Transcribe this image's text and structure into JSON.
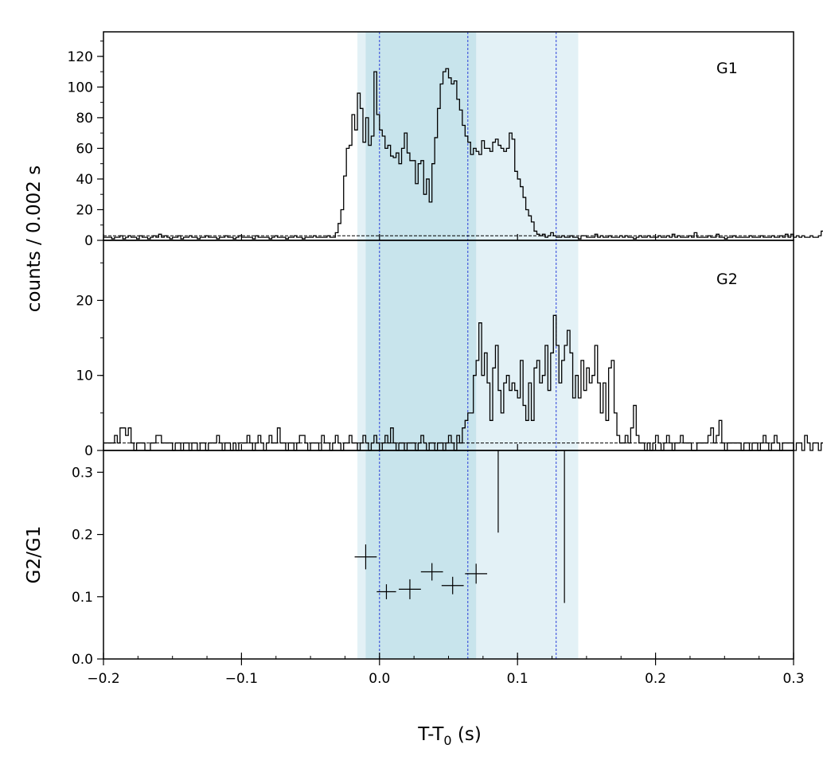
{
  "chart_data": [
    {
      "type": "line",
      "panel_label": "G1",
      "ylabel": "",
      "xlim": [
        -0.2,
        0.3
      ],
      "ylim": [
        0,
        136
      ],
      "yticks": [
        "0",
        "20",
        "40",
        "60",
        "80",
        "100",
        "120"
      ],
      "background_level": 3,
      "bin_width": 0.002,
      "series": [
        {
          "x_start": -0.2,
          "values": [
            2,
            2,
            2,
            1,
            2,
            2,
            3,
            1,
            2,
            3,
            2,
            2,
            1,
            3,
            2,
            2,
            1,
            2,
            3,
            2,
            4,
            2,
            3,
            2,
            1,
            2,
            2,
            3,
            1,
            2,
            2,
            3,
            2,
            2,
            1,
            2,
            2,
            3,
            2,
            2,
            2,
            1,
            2,
            2,
            3,
            2,
            2,
            1,
            2,
            3,
            2,
            2,
            2,
            2,
            1,
            3,
            2,
            2,
            2,
            2,
            1,
            2,
            3,
            2,
            2,
            2,
            1,
            2,
            2,
            3,
            2,
            2,
            1,
            2,
            2,
            2,
            3,
            2,
            2,
            2,
            2,
            3,
            2,
            2,
            5,
            11,
            20,
            42,
            60,
            62,
            82,
            72,
            96,
            86,
            64,
            80,
            62,
            68,
            110,
            82,
            72,
            68,
            60,
            62,
            55,
            54,
            57,
            50,
            60,
            70,
            57,
            52,
            52,
            37,
            50,
            52,
            30,
            40,
            25,
            50,
            67,
            86,
            102,
            110,
            112,
            106,
            102,
            104,
            92,
            85,
            75,
            68,
            64,
            56,
            60,
            58,
            56,
            65,
            60,
            60,
            58,
            64,
            66,
            62,
            60,
            58,
            60,
            70,
            66,
            45,
            40,
            35,
            28,
            20,
            16,
            12,
            6,
            4,
            3,
            4,
            2,
            3,
            5,
            3,
            2,
            2,
            3,
            2,
            2,
            3,
            2,
            2,
            1,
            3,
            3,
            2,
            2,
            2,
            4,
            2,
            3,
            2,
            2,
            3,
            2,
            2,
            2,
            3,
            2,
            3,
            2,
            2,
            1,
            2,
            3,
            2,
            2,
            3,
            2,
            2,
            2,
            3,
            2,
            2,
            3,
            2,
            4,
            2,
            3,
            2,
            2,
            2,
            3,
            2,
            5,
            2,
            2,
            2,
            2,
            3,
            2,
            2,
            4,
            2,
            2,
            1,
            2,
            2,
            3,
            2,
            2,
            2,
            2,
            2,
            3,
            2,
            2,
            2,
            3,
            2,
            2,
            2,
            3,
            2,
            2,
            3,
            2,
            4,
            2,
            4,
            2,
            3,
            2,
            3,
            2,
            2,
            3,
            2,
            2,
            3,
            6
          ]
        }
      ]
    },
    {
      "type": "line",
      "panel_label": "G2",
      "ylabel": "",
      "xlim": [
        -0.2,
        0.3
      ],
      "ylim": [
        0,
        28
      ],
      "yticks": [
        "0",
        "10",
        "20"
      ],
      "background_level": 1,
      "bin_width": 0.002,
      "series": [
        {
          "x_start": -0.2,
          "values": [
            1,
            1,
            1,
            1,
            2,
            1,
            3,
            3,
            2,
            3,
            1,
            0,
            1,
            1,
            1,
            0,
            0,
            1,
            1,
            2,
            2,
            1,
            1,
            1,
            1,
            0,
            1,
            1,
            0,
            1,
            1,
            0,
            1,
            1,
            0,
            1,
            1,
            0,
            1,
            1,
            1,
            2,
            1,
            0,
            1,
            1,
            0,
            1,
            0,
            1,
            1,
            1,
            2,
            1,
            0,
            1,
            2,
            1,
            0,
            1,
            2,
            1,
            1,
            3,
            1,
            1,
            0,
            1,
            1,
            0,
            1,
            2,
            2,
            1,
            0,
            1,
            1,
            1,
            0,
            2,
            1,
            1,
            0,
            1,
            2,
            1,
            0,
            1,
            1,
            2,
            1,
            1,
            0,
            1,
            2,
            1,
            0,
            1,
            2,
            1,
            0,
            1,
            2,
            1,
            3,
            1,
            0,
            1,
            1,
            0,
            1,
            1,
            1,
            0,
            1,
            2,
            1,
            0,
            1,
            1,
            0,
            1,
            1,
            0,
            1,
            2,
            1,
            0,
            2,
            1,
            3,
            4,
            5,
            5,
            10,
            12,
            17,
            10,
            13,
            9,
            4,
            11,
            14,
            8,
            5,
            9,
            10,
            8,
            9,
            8,
            7,
            12,
            6,
            4,
            9,
            4,
            11,
            12,
            9,
            10,
            14,
            8,
            13,
            18,
            14,
            9,
            12,
            14,
            16,
            13,
            7,
            10,
            7,
            12,
            8,
            11,
            9,
            10,
            14,
            9,
            5,
            9,
            4,
            11,
            12,
            5,
            2,
            1,
            1,
            2,
            1,
            3,
            6,
            2,
            1,
            1,
            0,
            1,
            0,
            1,
            2,
            1,
            0,
            1,
            2,
            1,
            0,
            1,
            1,
            2,
            1,
            1,
            1,
            0,
            0,
            1,
            1,
            1,
            1,
            2,
            3,
            1,
            2,
            4,
            1,
            0,
            1,
            1,
            1,
            1,
            1,
            0,
            1,
            1,
            0,
            1,
            1,
            0,
            1,
            2,
            1,
            0,
            1,
            2,
            1,
            0,
            1,
            1,
            1,
            1,
            0,
            1,
            1,
            0,
            2,
            1,
            0,
            1,
            1,
            0,
            1,
            2,
            1,
            1,
            0,
            1,
            1,
            1,
            0,
            1,
            2,
            1,
            1,
            0,
            1,
            1,
            1,
            2,
            1,
            1,
            1,
            0,
            1,
            1,
            2,
            1,
            1,
            1
          ]
        }
      ]
    },
    {
      "type": "scatter",
      "panel_label": "",
      "ylabel": "G2/G1",
      "xlim": [
        -0.2,
        0.3
      ],
      "ylim": [
        0,
        0.3
      ],
      "yticks": [
        "0.0",
        "0.1",
        "0.2",
        "0.3"
      ],
      "points": [
        {
          "x": -0.01,
          "y": 0.164,
          "xerr": 0.008,
          "yerr": 0.02
        },
        {
          "x": 0.005,
          "y": 0.108,
          "xerr": 0.007,
          "yerr": 0.012
        },
        {
          "x": 0.022,
          "y": 0.112,
          "xerr": 0.008,
          "yerr": 0.016
        },
        {
          "x": 0.038,
          "y": 0.14,
          "xerr": 0.008,
          "yerr": 0.014
        },
        {
          "x": 0.053,
          "y": 0.118,
          "xerr": 0.008,
          "yerr": 0.014
        },
        {
          "x": 0.07,
          "y": 0.137,
          "xerr": 0.008,
          "yerr": 0.016
        }
      ],
      "upper_limits": [
        {
          "x": 0.086,
          "y_low": 0.203,
          "y_high": 0.35
        },
        {
          "x": 0.134,
          "y_low": 0.09,
          "y_high": 0.35
        }
      ]
    }
  ],
  "shared_axis": {
    "xlabel": "T-T",
    "xlabel_sub": "0",
    "xlabel_unit": " (s)",
    "xticks": [
      {
        "value": -0.2,
        "label": "−0.2"
      },
      {
        "value": -0.1,
        "label": "−0.1"
      },
      {
        "value": 0.0,
        "label": "0.0"
      },
      {
        "value": 0.1,
        "label": "0.1"
      },
      {
        "value": 0.2,
        "label": "0.2"
      },
      {
        "value": 0.3,
        "label": "0.3"
      }
    ],
    "ylabel_top": "counts /  0.002 s"
  },
  "shading": {
    "outer": {
      "from": -0.016,
      "to": 0.144,
      "color": "#e3f1f6"
    },
    "inner": {
      "from": -0.01,
      "to": 0.07,
      "color": "#c8e4ec"
    },
    "dashed_lines": [
      0.0,
      0.064,
      0.128
    ],
    "dashed_color": "#2a3fd9"
  }
}
